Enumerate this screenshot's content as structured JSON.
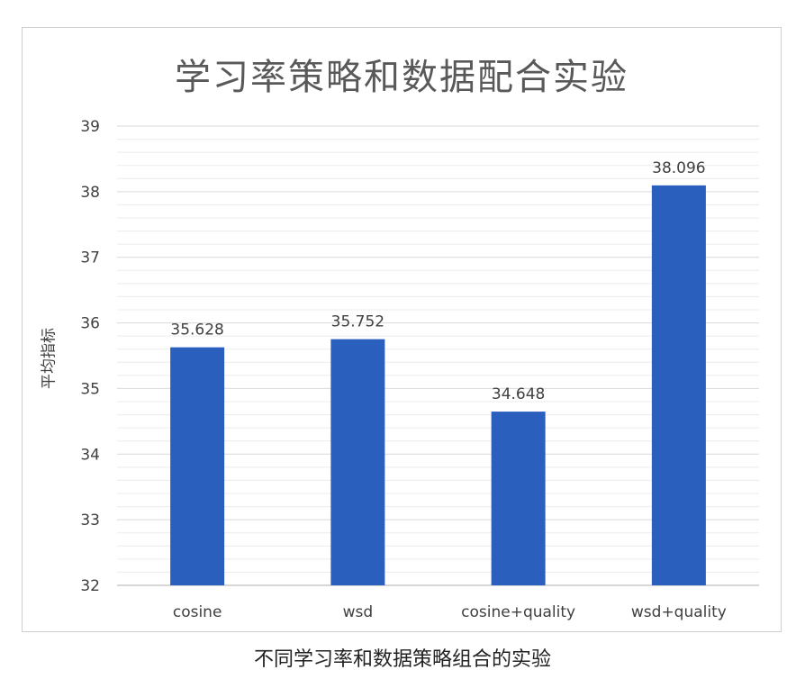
{
  "chart_data": {
    "type": "bar",
    "title": "学习率策略和数据配合实验",
    "ylabel": "平均指标",
    "xlabel": "",
    "categories": [
      "cosine",
      "wsd",
      "cosine+quality",
      "wsd+quality"
    ],
    "values": [
      35.628,
      35.752,
      34.648,
      38.096
    ],
    "data_labels": [
      "35.628",
      "35.752",
      "34.648",
      "38.096"
    ],
    "ylim": [
      32,
      39
    ],
    "yticks": [
      "32",
      "33",
      "34",
      "35",
      "36",
      "37",
      "38",
      "39"
    ],
    "grid": true,
    "minor_gridlines_per_unit": 5,
    "legend": "none",
    "bar_color": "#2b5fbd"
  },
  "caption": "不同学习率和数据策略组合的实验"
}
